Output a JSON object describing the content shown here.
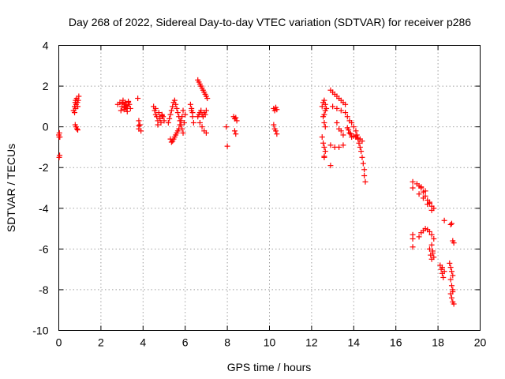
{
  "chart_data": {
    "type": "scatter",
    "title": "Day 268 of 2022, Sidereal Day-to-day VTEC variation (SDTVAR) for receiver p286",
    "xlabel": "GPS time / hours",
    "ylabel": "SDTVAR / TECUs",
    "xlim": [
      0,
      20
    ],
    "ylim": [
      -10,
      4
    ],
    "xticks": [
      0,
      2,
      4,
      6,
      8,
      10,
      12,
      14,
      16,
      18,
      20
    ],
    "yticks": [
      -10,
      -8,
      -6,
      -4,
      -2,
      0,
      2,
      4
    ],
    "grid": true,
    "marker": "+",
    "color": "#ff0000",
    "series": [
      {
        "name": "SDTVAR",
        "x": [
          0.0,
          0.02,
          0.03,
          0.05,
          0.02,
          0.04,
          0.7,
          0.75,
          0.78,
          0.8,
          0.82,
          0.85,
          0.88,
          0.9,
          0.92,
          0.95,
          0.78,
          0.82,
          0.86,
          0.9,
          0.75,
          0.8,
          2.8,
          2.9,
          3.0,
          3.05,
          3.1,
          3.15,
          3.2,
          3.25,
          3.3,
          3.35,
          3.4,
          2.95,
          3.1,
          3.2,
          3.3,
          3.0,
          3.15,
          3.25,
          3.75,
          3.8,
          3.8,
          3.85,
          3.9,
          3.8,
          4.5,
          4.55,
          4.6,
          4.65,
          4.7,
          4.75,
          4.8,
          4.85,
          4.9,
          4.95,
          5.0,
          4.6,
          4.7,
          4.8,
          4.9,
          5.2,
          5.25,
          5.3,
          5.35,
          5.4,
          5.45,
          5.5,
          5.55,
          5.6,
          5.65,
          5.7,
          5.75,
          5.8,
          5.85,
          5.9,
          5.95,
          6.0,
          5.3,
          5.4,
          5.5,
          5.6,
          5.7,
          5.8,
          5.9,
          5.35,
          5.45,
          5.55,
          5.65,
          5.75,
          5.85,
          6.25,
          6.3,
          6.35,
          6.4,
          6.3,
          6.35,
          6.6,
          6.65,
          6.7,
          6.75,
          6.8,
          6.85,
          6.9,
          6.95,
          7.0,
          7.05,
          6.6,
          6.65,
          6.7,
          6.75,
          6.8,
          6.85,
          6.9,
          6.95,
          7.0,
          6.7,
          6.8,
          6.9,
          7.0,
          7.95,
          8.0,
          8.3,
          8.35,
          8.4,
          8.45,
          8.35,
          8.4,
          10.2,
          10.25,
          10.3,
          10.35,
          10.2,
          10.25,
          10.3,
          10.35,
          12.5,
          12.55,
          12.6,
          12.65,
          12.7,
          12.55,
          12.6,
          12.65,
          12.5,
          12.55,
          12.6,
          12.65,
          12.6,
          12.6,
          12.6,
          12.65,
          12.9,
          13.0,
          13.1,
          13.2,
          13.3,
          13.4,
          13.5,
          13.6,
          13.0,
          13.2,
          13.4,
          13.6,
          12.9,
          13.1,
          13.3,
          13.5,
          13.2,
          13.3,
          13.4,
          13.5,
          12.9,
          13.7,
          13.8,
          13.9,
          14.0,
          14.1,
          14.15,
          14.2,
          14.25,
          14.3,
          14.35,
          14.4,
          14.45,
          14.5,
          14.5,
          14.55,
          13.7,
          13.75,
          13.8,
          13.85,
          13.9,
          14.0,
          14.1,
          14.2,
          14.3,
          14.4,
          16.8,
          16.8,
          16.8,
          16.8,
          16.8,
          17.0,
          17.1,
          17.2,
          17.3,
          17.4,
          17.5,
          17.6,
          17.7,
          17.8,
          17.1,
          17.3,
          17.5,
          17.7,
          17.2,
          17.4,
          17.6,
          17.1,
          17.2,
          17.3,
          17.4,
          17.5,
          17.6,
          17.7,
          17.8,
          17.6,
          17.65,
          17.7,
          17.75,
          17.7,
          17.75,
          17.8,
          18.1,
          18.15,
          18.2,
          18.25,
          18.3,
          18.2,
          18.3,
          18.55,
          18.6,
          18.65,
          18.7,
          18.6,
          18.65,
          18.7,
          18.6,
          18.65,
          18.7,
          18.75,
          18.6,
          18.65,
          18.7,
          18.75,
          18.7
        ],
        "y": [
          -0.4,
          -0.5,
          -0.3,
          -0.5,
          -1.5,
          -1.4,
          0.8,
          1.0,
          1.2,
          1.3,
          1.1,
          1.4,
          1.2,
          1.0,
          1.3,
          1.5,
          0.1,
          0.0,
          -0.1,
          -0.15,
          0.7,
          0.9,
          1.1,
          1.2,
          1.0,
          1.3,
          1.1,
          1.2,
          0.9,
          1.0,
          1.2,
          1.1,
          0.9,
          0.8,
          0.85,
          1.05,
          1.25,
          1.15,
          0.95,
          0.75,
          1.4,
          0.3,
          -0.1,
          0.1,
          -0.2,
          0.05,
          1.0,
          0.8,
          0.6,
          0.5,
          0.3,
          0.7,
          0.4,
          0.2,
          0.6,
          0.5,
          0.3,
          0.9,
          0.1,
          0.4,
          0.55,
          0.2,
          0.4,
          0.6,
          0.8,
          1.0,
          1.2,
          1.3,
          1.1,
          0.9,
          0.7,
          0.5,
          0.3,
          0.1,
          -0.1,
          -0.3,
          0.2,
          0.6,
          -0.6,
          -0.7,
          -0.5,
          -0.3,
          -0.1,
          0.3,
          0.8,
          -0.75,
          -0.6,
          -0.4,
          -0.2,
          0.1,
          0.5,
          1.1,
          0.8,
          0.5,
          0.2,
          0.9,
          0.7,
          2.3,
          2.2,
          2.1,
          2.0,
          1.9,
          1.8,
          1.7,
          1.6,
          1.5,
          1.4,
          0.5,
          0.6,
          0.7,
          0.8,
          0.6,
          0.5,
          0.7,
          0.6,
          0.8,
          0.2,
          0.0,
          -0.2,
          -0.3,
          0.0,
          -0.95,
          0.5,
          0.4,
          0.45,
          0.3,
          -0.2,
          -0.35,
          0.9,
          0.8,
          0.95,
          0.85,
          0.1,
          -0.1,
          -0.2,
          -0.35,
          1.0,
          1.2,
          1.3,
          1.1,
          0.9,
          0.5,
          0.2,
          0.0,
          -0.5,
          -0.8,
          -1.0,
          -1.2,
          -1.45,
          -1.5,
          0.6,
          0.8,
          1.8,
          1.7,
          1.6,
          1.5,
          1.4,
          1.3,
          1.2,
          1.1,
          1.0,
          0.9,
          0.8,
          0.7,
          -0.9,
          -1.0,
          -1.0,
          -0.9,
          0.2,
          -0.1,
          -0.2,
          -0.4,
          -1.9,
          0.5,
          0.3,
          0.2,
          0.0,
          -0.2,
          -0.4,
          -0.6,
          -0.8,
          -1.0,
          -1.2,
          -1.5,
          -1.8,
          -2.1,
          -2.4,
          -2.7,
          -0.05,
          -0.15,
          -0.3,
          -0.35,
          -0.5,
          -0.45,
          -0.5,
          -0.55,
          -0.6,
          -0.7,
          -2.7,
          -3.0,
          -5.3,
          -5.5,
          -5.9,
          -2.8,
          -2.9,
          -3.0,
          -3.2,
          -3.4,
          -3.6,
          -3.7,
          -3.9,
          -4.0,
          -3.3,
          -3.5,
          -3.8,
          -4.1,
          -2.95,
          -3.15,
          -3.75,
          -5.4,
          -5.2,
          -5.1,
          -5.0,
          -5.05,
          -5.15,
          -5.3,
          -5.5,
          -6.0,
          -6.3,
          -6.5,
          -6.2,
          -5.8,
          -6.1,
          -6.4,
          -6.8,
          -7.0,
          -7.2,
          -7.4,
          -4.6,
          -6.9,
          -7.1,
          -6.7,
          -6.9,
          -7.1,
          -7.3,
          -7.5,
          -7.8,
          -8.0,
          -8.2,
          -8.4,
          -8.6,
          -8.7,
          -4.8,
          -4.75,
          -5.6,
          -5.7,
          -8.1
        ]
      }
    ]
  }
}
